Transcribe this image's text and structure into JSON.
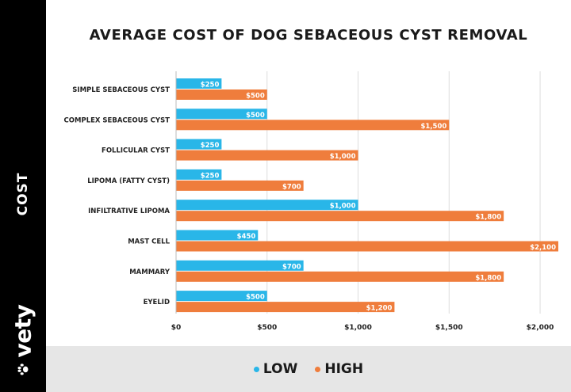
{
  "sidebar": {
    "label": "COST",
    "brand": "vety",
    "brand_icon": "paw-icon"
  },
  "colors": {
    "low": "#29b6e8",
    "high": "#ef7d3c",
    "band": "#000000",
    "legend_bg": "#e6e6e6"
  },
  "chart_data": {
    "type": "bar",
    "orientation": "horizontal",
    "title": "AVERAGE COST OF DOG SEBACEOUS CYST REMOVAL",
    "xlabel": "",
    "ylabel": "COST",
    "xlim": [
      0,
      2100
    ],
    "x_ticks": [
      "$0",
      "$500",
      "$1,000",
      "$1,500",
      "$2,000"
    ],
    "x_tick_values": [
      0,
      500,
      1000,
      1500,
      2000
    ],
    "grid": "vertical",
    "legend_position": "bottom",
    "categories": [
      "SIMPLE SEBACEOUS CYST",
      "COMPLEX SEBACEOUS CYST",
      "FOLLICULAR CYST",
      "LIPOMA (FATTY CYST)",
      "INFILTRATIVE LIPOMA",
      "MAST CELL",
      "MAMMARY",
      "EYELID"
    ],
    "series": [
      {
        "name": "LOW",
        "values": [
          250,
          500,
          250,
          250,
          1000,
          450,
          700,
          500
        ],
        "labels": [
          "$250",
          "$500",
          "$250",
          "$250",
          "$1,000",
          "$450",
          "$700",
          "$500"
        ]
      },
      {
        "name": "HIGH",
        "values": [
          500,
          1500,
          1000,
          700,
          1800,
          2100,
          1800,
          1200
        ],
        "labels": [
          "$500",
          "$1,500",
          "$1,000",
          "$700",
          "$1,800",
          "$2,100",
          "$1,800",
          "$1,200"
        ]
      }
    ]
  }
}
